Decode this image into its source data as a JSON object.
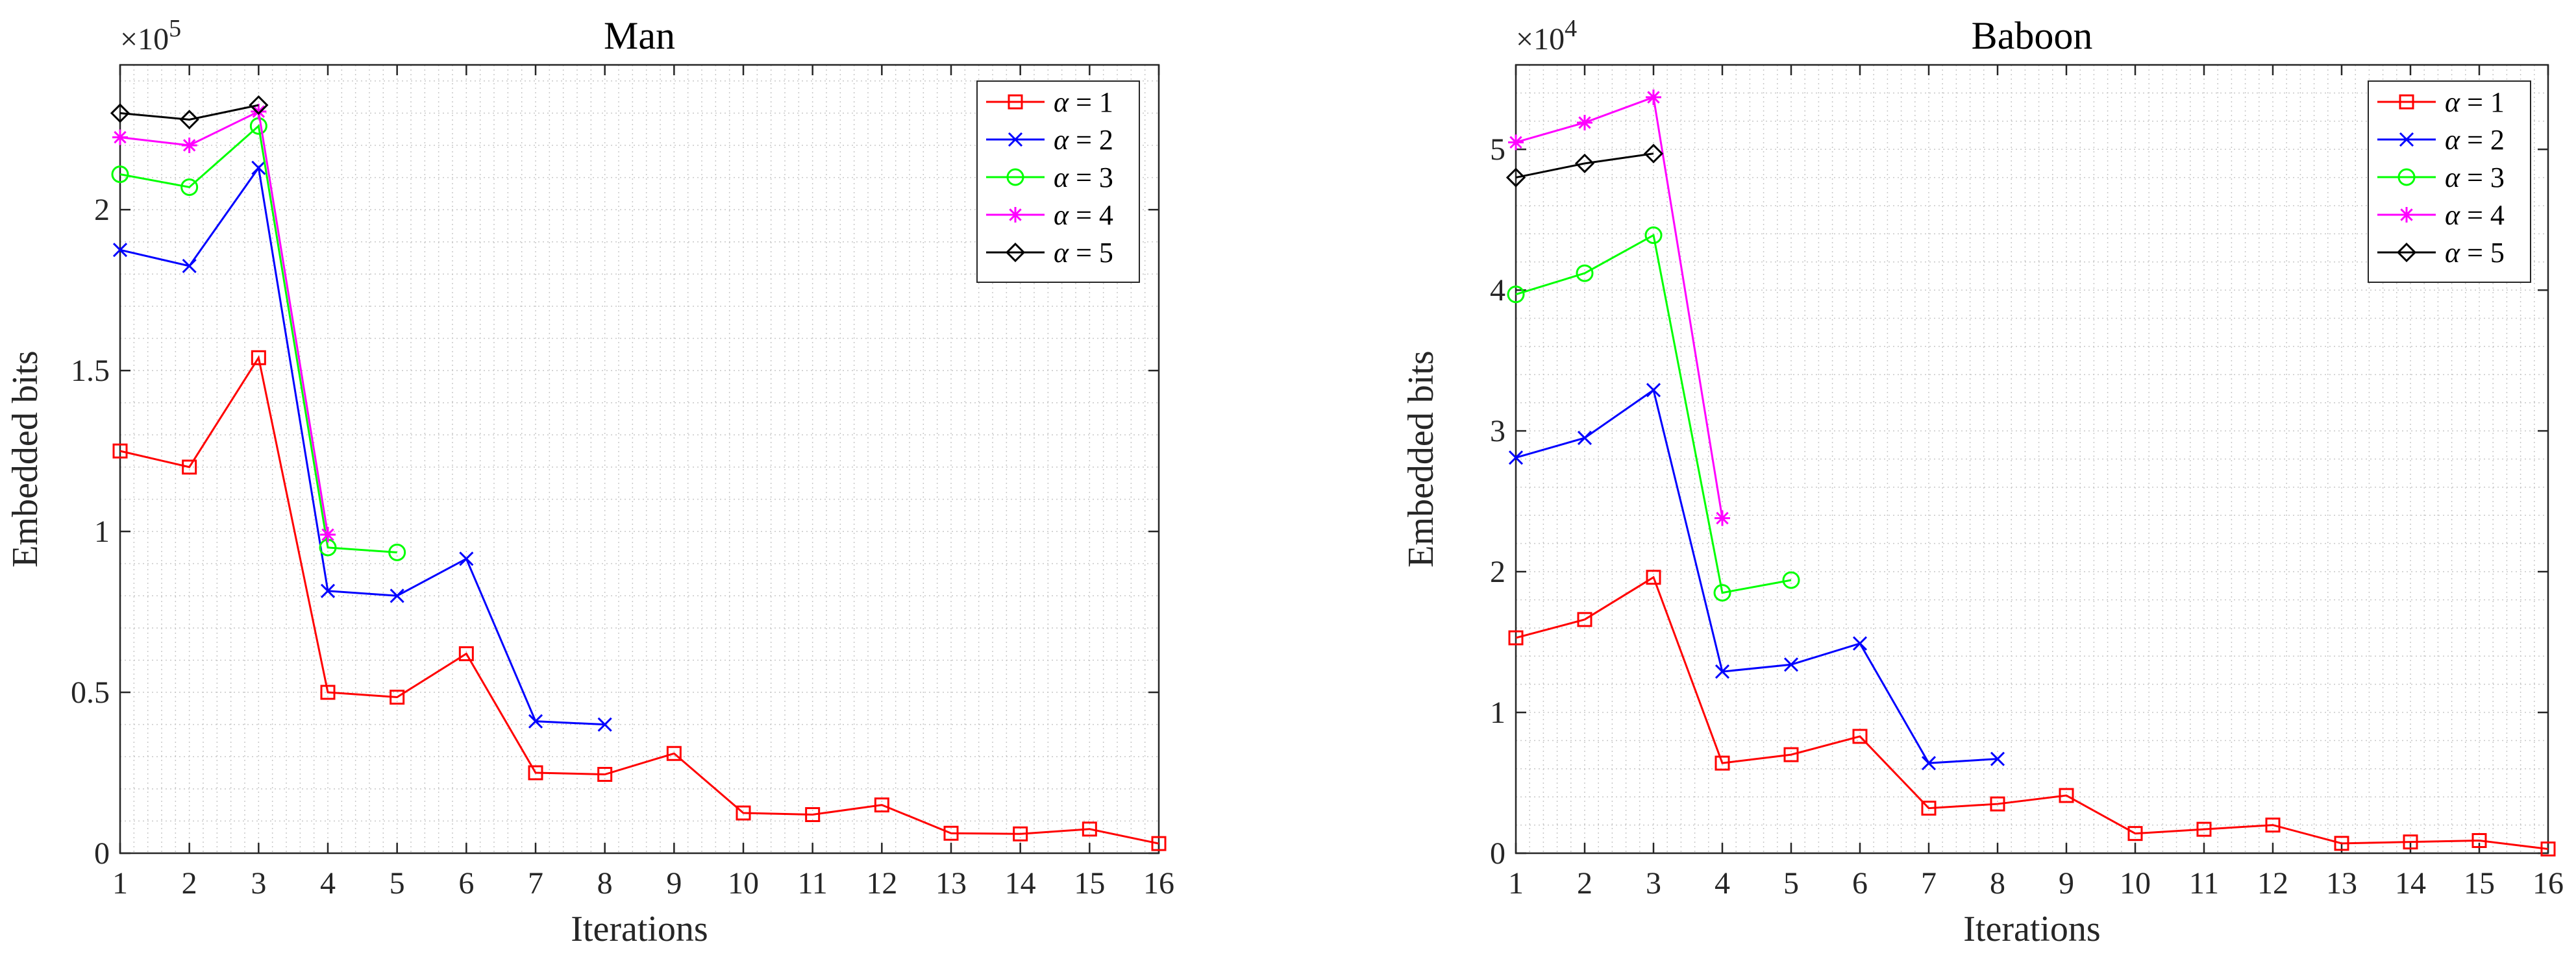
{
  "chart_data": [
    {
      "type": "line",
      "title": "Man",
      "xlabel": "Iterations",
      "ylabel": "Embedded bits",
      "exponent_prefix": "×10",
      "exponent_power": "5",
      "scale": 100000,
      "xlim": [
        1,
        16
      ],
      "ylim": [
        0,
        2.45
      ],
      "grid": "minor-dotted",
      "legend_position": "top-right",
      "x_ticks": [
        1,
        2,
        3,
        4,
        5,
        6,
        7,
        8,
        9,
        10,
        11,
        12,
        13,
        14,
        15,
        16
      ],
      "x_tick_labels": [
        "1",
        "2",
        "3",
        "4",
        "5",
        "6",
        "7",
        "8",
        "9",
        "10",
        "11",
        "12",
        "13",
        "14",
        "15",
        "16"
      ],
      "y_ticks": [
        0,
        0.5,
        1,
        1.5,
        2
      ],
      "y_tick_labels": [
        "0",
        "0.5",
        "1",
        "1.5",
        "2"
      ],
      "series": [
        {
          "name": "α = 1",
          "alpha": "α",
          "eq": " = 1",
          "color": "#ff0000",
          "marker": "square",
          "x": [
            1,
            2,
            3,
            4,
            5,
            6,
            7,
            8,
            9,
            10,
            11,
            12,
            13,
            14,
            15,
            16
          ],
          "y": [
            1.25,
            1.2,
            1.54,
            0.5,
            0.485,
            0.62,
            0.25,
            0.245,
            0.31,
            0.125,
            0.12,
            0.15,
            0.062,
            0.06,
            0.075,
            0.03
          ]
        },
        {
          "name": "α = 2",
          "alpha": "α",
          "eq": " = 2",
          "color": "#0000ff",
          "marker": "x",
          "x": [
            1,
            2,
            3,
            4,
            5,
            6,
            7,
            8
          ],
          "y": [
            1.875,
            1.825,
            2.13,
            0.815,
            0.8,
            0.915,
            0.41,
            0.4
          ]
        },
        {
          "name": "α = 3",
          "alpha": "α",
          "eq": " = 3",
          "color": "#00ff00",
          "marker": "circle",
          "x": [
            1,
            2,
            3,
            4,
            5
          ],
          "y": [
            2.11,
            2.07,
            2.26,
            0.95,
            0.935
          ]
        },
        {
          "name": "α = 4",
          "alpha": "α",
          "eq": " = 4",
          "color": "#ff00ff",
          "marker": "star",
          "x": [
            1,
            2,
            3,
            4
          ],
          "y": [
            2.225,
            2.2,
            2.305,
            0.99
          ]
        },
        {
          "name": "α = 5",
          "alpha": "α",
          "eq": " = 5",
          "color": "#000000",
          "marker": "diamond",
          "x": [
            1,
            2,
            3
          ],
          "y": [
            2.3,
            2.28,
            2.325
          ]
        }
      ]
    },
    {
      "type": "line",
      "title": "Baboon",
      "xlabel": "Iterations",
      "ylabel": "Embedded bits",
      "exponent_prefix": "×10",
      "exponent_power": "4",
      "scale": 10000,
      "xlim": [
        1,
        16
      ],
      "ylim": [
        0,
        5.6
      ],
      "grid": "minor-dotted",
      "legend_position": "top-right",
      "x_ticks": [
        1,
        2,
        3,
        4,
        5,
        6,
        7,
        8,
        9,
        10,
        11,
        12,
        13,
        14,
        15,
        16
      ],
      "x_tick_labels": [
        "1",
        "2",
        "3",
        "4",
        "5",
        "6",
        "7",
        "8",
        "9",
        "10",
        "11",
        "12",
        "13",
        "14",
        "15",
        "16"
      ],
      "y_ticks": [
        0,
        1,
        2,
        3,
        4,
        5
      ],
      "y_tick_labels": [
        "0",
        "1",
        "2",
        "3",
        "4",
        "5"
      ],
      "series": [
        {
          "name": "α = 1",
          "alpha": "α",
          "eq": " = 1",
          "color": "#ff0000",
          "marker": "square",
          "x": [
            1,
            2,
            3,
            4,
            5,
            6,
            7,
            8,
            9,
            10,
            11,
            12,
            13,
            14,
            15,
            16
          ],
          "y": [
            1.53,
            1.66,
            1.96,
            0.64,
            0.7,
            0.83,
            0.32,
            0.35,
            0.41,
            0.14,
            0.17,
            0.2,
            0.07,
            0.08,
            0.09,
            0.03
          ]
        },
        {
          "name": "α = 2",
          "alpha": "α",
          "eq": " = 2",
          "color": "#0000ff",
          "marker": "x",
          "x": [
            1,
            2,
            3,
            4,
            5,
            6,
            7,
            8
          ],
          "y": [
            2.81,
            2.95,
            3.29,
            1.29,
            1.34,
            1.49,
            0.64,
            0.67
          ]
        },
        {
          "name": "α = 3",
          "alpha": "α",
          "eq": " = 3",
          "color": "#00ff00",
          "marker": "circle",
          "x": [
            1,
            2,
            3,
            4,
            5
          ],
          "y": [
            3.97,
            4.12,
            4.39,
            1.85,
            1.94
          ]
        },
        {
          "name": "α = 4",
          "alpha": "α",
          "eq": " = 4",
          "color": "#ff00ff",
          "marker": "star",
          "x": [
            1,
            2,
            3,
            4
          ],
          "y": [
            5.05,
            5.19,
            5.37,
            2.38
          ]
        },
        {
          "name": "α = 5",
          "alpha": "α",
          "eq": " = 5",
          "color": "#000000",
          "marker": "diamond",
          "x": [
            1,
            2,
            3
          ],
          "y": [
            4.8,
            4.9,
            4.97
          ]
        }
      ]
    }
  ]
}
